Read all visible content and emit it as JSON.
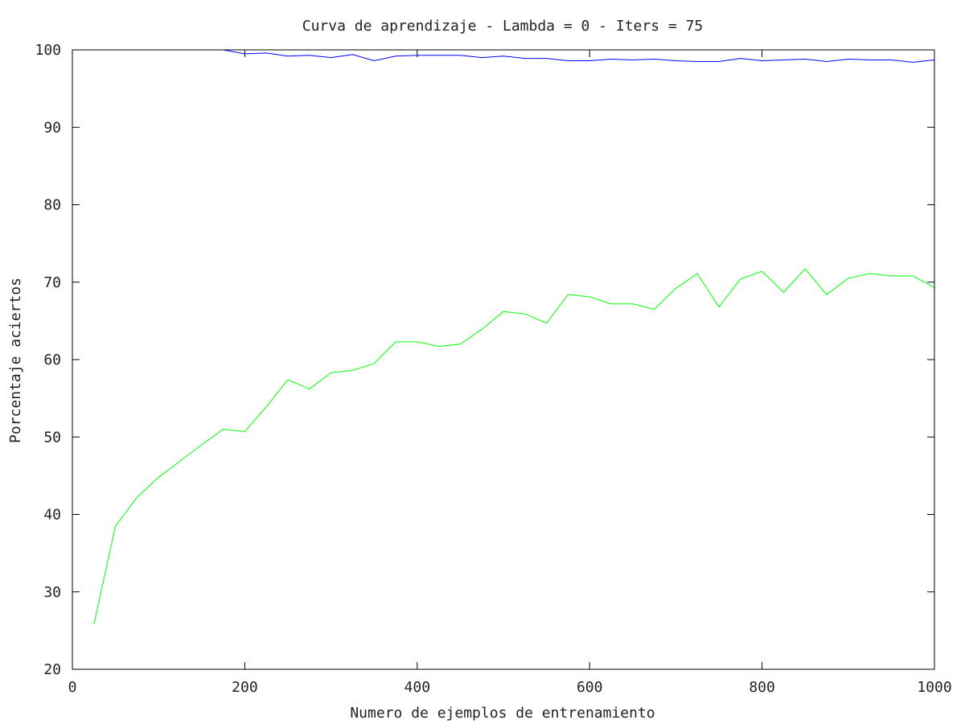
{
  "chart_data": {
    "type": "line",
    "title": "Curva de aprendizaje - Lambda = 0 - Iters = 75",
    "xlabel": "Numero de ejemplos de entrenamiento",
    "ylabel": "Porcentaje aciertos",
    "xlim": [
      0,
      1000
    ],
    "ylim": [
      20,
      100
    ],
    "xticks": [
      0,
      200,
      400,
      600,
      800,
      1000
    ],
    "yticks": [
      20,
      30,
      40,
      50,
      60,
      70,
      80,
      90,
      100
    ],
    "grid": false,
    "legend": "none",
    "x": [
      25,
      50,
      75,
      100,
      125,
      150,
      175,
      200,
      225,
      250,
      275,
      300,
      325,
      350,
      375,
      400,
      425,
      450,
      475,
      500,
      525,
      550,
      575,
      600,
      625,
      650,
      675,
      700,
      725,
      750,
      775,
      800,
      825,
      850,
      875,
      900,
      925,
      950,
      975,
      1000
    ],
    "series": [
      {
        "color": "#0000ff",
        "values": [
          100,
          100,
          100,
          100,
          100,
          100,
          100,
          99.5,
          99.6,
          99.2,
          99.3,
          99.0,
          99.4,
          98.6,
          99.2,
          99.3,
          99.3,
          99.3,
          99.0,
          99.2,
          98.9,
          98.9,
          98.6,
          98.6,
          98.8,
          98.7,
          98.8,
          98.6,
          98.5,
          98.5,
          98.9,
          98.6,
          98.7,
          98.8,
          98.5,
          98.8,
          98.7,
          98.7,
          98.4,
          98.7
        ]
      },
      {
        "color": "#00ff00",
        "values": [
          25.8,
          38.5,
          42.2,
          44.8,
          46.9,
          49.0,
          51.0,
          50.7,
          53.9,
          57.4,
          56.2,
          58.3,
          58.6,
          59.5,
          62.3,
          62.3,
          61.7,
          62.0,
          63.9,
          66.2,
          65.9,
          64.7,
          68.4,
          68.1,
          67.2,
          67.2,
          66.5,
          69.2,
          71.1,
          66.8,
          70.4,
          71.4,
          68.7,
          71.7,
          68.4,
          70.5,
          71.1,
          70.8,
          70.8,
          69.3
        ]
      }
    ]
  }
}
